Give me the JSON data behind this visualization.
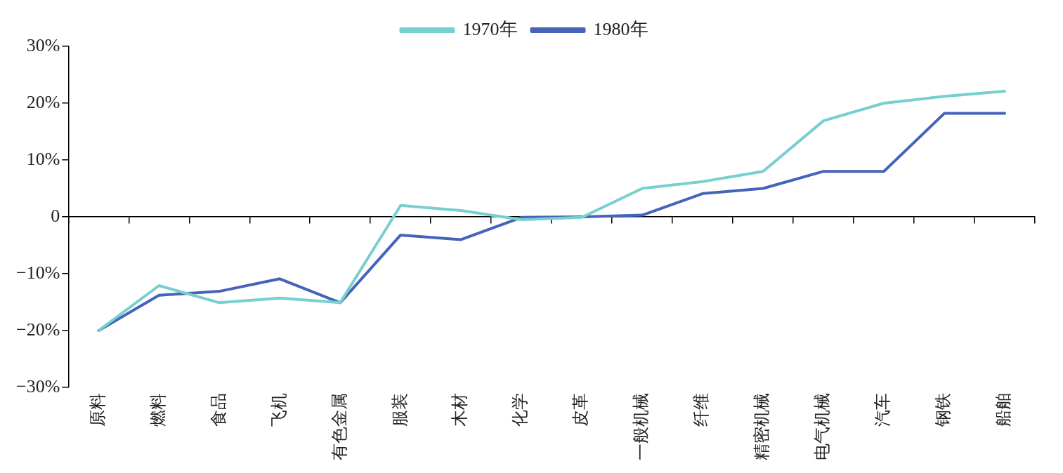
{
  "chart_data": {
    "type": "line",
    "categories": [
      "原料",
      "燃料",
      "食品",
      "飞机",
      "有色金属",
      "服装",
      "木材",
      "化学",
      "皮革",
      "一般机械",
      "纤维",
      "精密机械",
      "电气机械",
      "汽车",
      "钢铁",
      "船舶"
    ],
    "series": [
      {
        "name": "1970年",
        "color": "#77cfd0",
        "values": [
          -20,
          -12.1,
          -15.1,
          -14.3,
          -15.1,
          2,
          1.1,
          -0.5,
          -0.1,
          5,
          6.2,
          8,
          16.9,
          20,
          21.2,
          22.1
        ]
      },
      {
        "name": "1980年",
        "color": "#4563b8",
        "values": [
          -20,
          -13.8,
          -13.1,
          -10.9,
          -15.1,
          -3.2,
          -4,
          -0.1,
          0,
          0.3,
          4.1,
          5,
          8,
          8,
          18.2,
          18.2
        ]
      }
    ],
    "ylim": [
      -30,
      30
    ],
    "yticks": [
      {
        "value": -30,
        "label": "−30%"
      },
      {
        "value": -20,
        "label": "−20%"
      },
      {
        "value": -10,
        "label": "−10%"
      },
      0,
      {
        "value": 10,
        "label": "10%"
      },
      {
        "value": 20,
        "label": "20%"
      },
      {
        "value": 30,
        "label": "30%"
      }
    ],
    "ref_lines": [
      {
        "axis": "y",
        "value": 0,
        "color": "#000000"
      }
    ],
    "grid": false,
    "legend": "top",
    "marker": "none",
    "line_style": "solid"
  }
}
